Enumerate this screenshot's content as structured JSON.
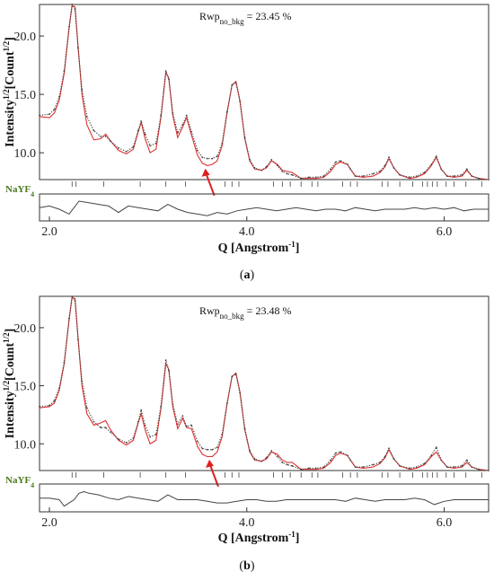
{
  "chart_data": [
    {
      "panel_label": "a",
      "type": "line",
      "xlabel": "Q [Angstrom-1]",
      "ylabel": "Intensity1/2[Count1/2]",
      "rwp": {
        "prefix": "Rwp",
        "subscript": "no_bkg",
        "value": "23.45 %"
      },
      "xlim": [
        1.9,
        6.45
      ],
      "ylim": [
        7.7,
        22.7
      ],
      "x_ticks": [
        2.0,
        4.0,
        6.0
      ],
      "y_ticks": [
        10.0,
        15.0,
        20.0
      ],
      "phase": {
        "label": "NaYF",
        "subscript": "4"
      },
      "arrow_at": 3.58,
      "reflections": [
        2.23,
        2.27,
        2.55,
        2.92,
        3.18,
        3.38,
        3.78,
        3.85,
        3.92,
        4.27,
        4.36,
        4.44,
        4.55,
        4.66,
        4.72,
        4.97,
        5.05,
        5.12,
        5.37,
        5.43,
        5.55,
        5.68,
        5.78,
        5.83,
        5.88,
        5.93,
        6.02,
        6.1,
        6.22,
        6.38
      ],
      "series": [
        {
          "name": "observed",
          "color": "#444444",
          "x": [
            1.9,
            2.0,
            2.05,
            2.1,
            2.15,
            2.2,
            2.23,
            2.26,
            2.29,
            2.33,
            2.38,
            2.45,
            2.52,
            2.57,
            2.62,
            2.7,
            2.78,
            2.85,
            2.9,
            2.93,
            2.97,
            3.02,
            3.08,
            3.13,
            3.18,
            3.21,
            3.25,
            3.3,
            3.35,
            3.39,
            3.44,
            3.5,
            3.55,
            3.6,
            3.65,
            3.7,
            3.75,
            3.8,
            3.85,
            3.89,
            3.93,
            3.98,
            4.03,
            4.08,
            4.15,
            4.2,
            4.25,
            4.31,
            4.36,
            4.41,
            4.46,
            4.55,
            4.63,
            4.7,
            4.78,
            4.85,
            4.9,
            4.95,
            5.02,
            5.05,
            5.1,
            5.18,
            5.28,
            5.35,
            5.4,
            5.44,
            5.49,
            5.55,
            5.65,
            5.72,
            5.8,
            5.87,
            5.92,
            5.97,
            6.03,
            6.1,
            6.18,
            6.23,
            6.28,
            6.35,
            6.45
          ],
          "y": [
            13.2,
            13.3,
            13.7,
            14.8,
            17.0,
            20.8,
            22.7,
            22.3,
            19.0,
            15.4,
            13.1,
            11.9,
            11.4,
            11.4,
            11.0,
            10.4,
            10.1,
            10.5,
            11.9,
            12.7,
            11.6,
            10.6,
            10.8,
            13.2,
            17.0,
            16.3,
            13.4,
            11.7,
            12.4,
            13.2,
            11.8,
            10.2,
            9.6,
            9.5,
            9.5,
            9.7,
            10.8,
            13.5,
            15.8,
            16.0,
            14.4,
            11.3,
            9.4,
            8.7,
            8.5,
            8.8,
            9.4,
            8.9,
            8.4,
            8.2,
            8.1,
            7.8,
            7.9,
            7.9,
            8.0,
            8.6,
            9.2,
            9.3,
            9.0,
            8.6,
            8.0,
            8.0,
            8.2,
            8.4,
            8.9,
            9.6,
            8.7,
            8.1,
            7.9,
            8.0,
            8.3,
            9.0,
            9.7,
            8.6,
            8.0,
            8.0,
            8.1,
            8.6,
            8.0,
            7.8,
            7.7
          ]
        },
        {
          "name": "calculated",
          "color": "#e03030",
          "x": [
            1.9,
            2.0,
            2.05,
            2.1,
            2.15,
            2.2,
            2.23,
            2.26,
            2.29,
            2.33,
            2.38,
            2.45,
            2.52,
            2.57,
            2.62,
            2.7,
            2.78,
            2.85,
            2.9,
            2.93,
            2.97,
            3.02,
            3.08,
            3.13,
            3.18,
            3.21,
            3.25,
            3.3,
            3.35,
            3.39,
            3.44,
            3.5,
            3.55,
            3.6,
            3.65,
            3.7,
            3.75,
            3.8,
            3.85,
            3.89,
            3.93,
            3.98,
            4.03,
            4.08,
            4.15,
            4.2,
            4.25,
            4.31,
            4.36,
            4.41,
            4.46,
            4.55,
            4.63,
            4.7,
            4.78,
            4.85,
            4.9,
            4.95,
            5.02,
            5.05,
            5.1,
            5.18,
            5.28,
            5.35,
            5.4,
            5.44,
            5.49,
            5.55,
            5.65,
            5.72,
            5.8,
            5.87,
            5.92,
            5.97,
            6.03,
            6.1,
            6.18,
            6.23,
            6.28,
            6.35,
            6.45
          ],
          "y": [
            13.1,
            13.0,
            13.4,
            14.5,
            16.8,
            20.7,
            22.6,
            22.5,
            19.2,
            15.0,
            12.4,
            11.1,
            11.2,
            11.6,
            11.0,
            10.2,
            9.9,
            10.3,
            11.8,
            12.6,
            11.2,
            10.0,
            10.3,
            13.0,
            16.9,
            16.4,
            13.2,
            11.3,
            12.2,
            13.0,
            11.5,
            9.8,
            9.1,
            8.9,
            9.0,
            9.3,
            10.6,
            13.4,
            15.8,
            16.1,
            14.5,
            11.2,
            9.3,
            8.6,
            8.5,
            8.7,
            9.3,
            9.0,
            8.5,
            8.4,
            8.3,
            7.8,
            7.8,
            7.8,
            7.9,
            8.4,
            9.0,
            9.2,
            9.0,
            8.6,
            8.0,
            7.9,
            8.0,
            8.3,
            8.8,
            9.5,
            8.7,
            8.1,
            7.8,
            7.9,
            8.2,
            8.9,
            9.6,
            8.6,
            8.0,
            7.9,
            8.0,
            8.5,
            8.0,
            7.8,
            7.7
          ]
        }
      ],
      "difference": {
        "x": [
          1.9,
          2.0,
          2.1,
          2.2,
          2.25,
          2.3,
          2.4,
          2.5,
          2.6,
          2.7,
          2.8,
          2.9,
          3.0,
          3.1,
          3.2,
          3.3,
          3.4,
          3.5,
          3.6,
          3.7,
          3.8,
          3.9,
          4.0,
          4.1,
          4.2,
          4.3,
          4.4,
          4.5,
          4.6,
          4.7,
          4.8,
          4.9,
          5.0,
          5.1,
          5.2,
          5.3,
          5.4,
          5.5,
          5.6,
          5.7,
          5.8,
          5.9,
          6.0,
          6.1,
          6.2,
          6.3,
          6.45
        ],
        "y": [
          0.1,
          0.2,
          0.0,
          -0.3,
          0.1,
          0.5,
          0.4,
          0.3,
          0.2,
          -0.2,
          0.2,
          0.1,
          0.0,
          -0.1,
          0.3,
          0.0,
          -0.2,
          -0.3,
          -0.4,
          -0.2,
          -0.3,
          -0.1,
          0.0,
          0.1,
          0.0,
          -0.1,
          0.0,
          0.1,
          0.0,
          -0.1,
          0.0,
          0.0,
          -0.1,
          0.1,
          0.0,
          -0.1,
          0.0,
          0.0,
          0.0,
          0.1,
          0.0,
          0.1,
          0.0,
          0.1,
          -0.1,
          0.0,
          0.0
        ]
      }
    },
    {
      "panel_label": "b",
      "type": "line",
      "xlabel": "Q [Angstrom-1]",
      "ylabel": "Intensity1/2[Count1/2]",
      "rwp": {
        "prefix": "Rwp",
        "subscript": "no_bkg",
        "value": "23.48 %"
      },
      "xlim": [
        1.9,
        6.45
      ],
      "ylim": [
        7.7,
        22.7
      ],
      "x_ticks": [
        2.0,
        4.0,
        6.0
      ],
      "y_ticks": [
        10.0,
        15.0,
        20.0
      ],
      "phase": {
        "label": "NaYF",
        "subscript": "4"
      },
      "arrow_at": 3.62,
      "reflections": [
        2.23,
        2.27,
        2.55,
        2.92,
        3.18,
        3.38,
        3.78,
        3.85,
        3.92,
        4.27,
        4.36,
        4.44,
        4.55,
        4.66,
        4.72,
        4.97,
        5.05,
        5.12,
        5.37,
        5.43,
        5.55,
        5.68,
        5.78,
        5.83,
        5.88,
        5.93,
        6.02,
        6.1,
        6.22,
        6.38
      ],
      "series": [
        {
          "name": "observed",
          "color": "#444444",
          "x": [
            1.9,
            2.0,
            2.05,
            2.1,
            2.15,
            2.2,
            2.23,
            2.26,
            2.29,
            2.33,
            2.38,
            2.45,
            2.52,
            2.57,
            2.62,
            2.7,
            2.78,
            2.85,
            2.9,
            2.93,
            2.97,
            3.02,
            3.08,
            3.13,
            3.18,
            3.21,
            3.25,
            3.3,
            3.35,
            3.39,
            3.44,
            3.5,
            3.55,
            3.6,
            3.65,
            3.7,
            3.75,
            3.8,
            3.85,
            3.89,
            3.93,
            3.98,
            4.03,
            4.08,
            4.15,
            4.2,
            4.25,
            4.31,
            4.36,
            4.41,
            4.46,
            4.55,
            4.63,
            4.7,
            4.78,
            4.85,
            4.9,
            4.95,
            5.02,
            5.05,
            5.1,
            5.18,
            5.28,
            5.35,
            5.4,
            5.44,
            5.49,
            5.55,
            5.65,
            5.72,
            5.8,
            5.87,
            5.92,
            5.97,
            6.03,
            6.1,
            6.18,
            6.23,
            6.28,
            6.35,
            6.45
          ],
          "y": [
            13.2,
            13.3,
            13.7,
            14.8,
            17.0,
            20.8,
            22.7,
            22.3,
            19.0,
            15.4,
            13.1,
            11.9,
            11.4,
            11.4,
            11.0,
            10.4,
            10.1,
            10.5,
            11.9,
            12.9,
            11.6,
            10.6,
            10.8,
            13.2,
            17.2,
            16.3,
            13.4,
            11.7,
            12.4,
            11.5,
            11.6,
            10.2,
            9.6,
            9.5,
            9.5,
            9.7,
            10.8,
            13.5,
            15.8,
            16.0,
            14.4,
            11.3,
            9.4,
            8.7,
            8.5,
            8.8,
            9.4,
            8.9,
            8.4,
            8.2,
            8.1,
            7.8,
            7.9,
            7.9,
            8.0,
            8.6,
            9.2,
            9.3,
            9.0,
            8.6,
            8.0,
            8.0,
            8.2,
            8.4,
            8.9,
            9.6,
            8.7,
            8.1,
            7.9,
            8.0,
            8.3,
            9.0,
            9.7,
            8.6,
            8.0,
            8.0,
            8.1,
            8.6,
            8.0,
            7.8,
            7.7
          ]
        },
        {
          "name": "calculated",
          "color": "#e03030",
          "x": [
            1.9,
            2.0,
            2.05,
            2.1,
            2.15,
            2.2,
            2.23,
            2.26,
            2.29,
            2.33,
            2.38,
            2.45,
            2.52,
            2.57,
            2.62,
            2.7,
            2.78,
            2.85,
            2.9,
            2.93,
            2.97,
            3.02,
            3.08,
            3.13,
            3.18,
            3.21,
            3.25,
            3.3,
            3.35,
            3.39,
            3.44,
            3.5,
            3.55,
            3.6,
            3.65,
            3.7,
            3.75,
            3.8,
            3.85,
            3.89,
            3.93,
            3.98,
            4.03,
            4.08,
            4.15,
            4.2,
            4.25,
            4.31,
            4.36,
            4.41,
            4.46,
            4.55,
            4.63,
            4.7,
            4.78,
            4.85,
            4.9,
            4.95,
            5.02,
            5.05,
            5.1,
            5.18,
            5.28,
            5.35,
            5.4,
            5.44,
            5.49,
            5.55,
            5.65,
            5.72,
            5.8,
            5.87,
            5.92,
            5.97,
            6.03,
            6.1,
            6.18,
            6.23,
            6.28,
            6.35,
            6.45
          ],
          "y": [
            13.1,
            13.2,
            13.5,
            14.6,
            16.9,
            20.7,
            22.6,
            22.5,
            19.2,
            15.0,
            12.6,
            11.6,
            11.8,
            12.0,
            11.2,
            10.3,
            9.9,
            10.3,
            11.8,
            12.6,
            11.2,
            10.0,
            10.3,
            13.0,
            16.9,
            16.4,
            13.2,
            11.3,
            12.2,
            11.4,
            11.3,
            9.8,
            9.1,
            8.9,
            8.9,
            9.3,
            10.6,
            13.4,
            15.8,
            16.1,
            14.5,
            11.2,
            9.3,
            8.6,
            8.5,
            8.7,
            9.3,
            9.1,
            8.6,
            8.4,
            8.4,
            7.8,
            7.8,
            7.8,
            7.9,
            8.4,
            9.0,
            9.2,
            9.0,
            8.6,
            8.0,
            7.9,
            8.0,
            8.3,
            8.8,
            9.5,
            8.7,
            8.1,
            7.8,
            7.9,
            8.2,
            8.9,
            9.3,
            8.6,
            8.0,
            7.9,
            8.0,
            8.4,
            8.0,
            7.8,
            7.7
          ]
        }
      ],
      "difference": {
        "x": [
          1.9,
          2.0,
          2.1,
          2.15,
          2.2,
          2.25,
          2.3,
          2.35,
          2.4,
          2.5,
          2.6,
          2.7,
          2.8,
          2.9,
          3.0,
          3.1,
          3.2,
          3.3,
          3.4,
          3.5,
          3.6,
          3.7,
          3.8,
          3.9,
          4.0,
          4.1,
          4.2,
          4.3,
          4.4,
          4.5,
          4.6,
          4.7,
          4.8,
          4.9,
          5.0,
          5.1,
          5.2,
          5.3,
          5.4,
          5.5,
          5.6,
          5.7,
          5.8,
          5.9,
          6.0,
          6.1,
          6.2,
          6.3,
          6.45
        ],
        "y": [
          0.1,
          0.1,
          0.0,
          -0.4,
          -0.2,
          0.0,
          0.4,
          0.5,
          0.4,
          0.3,
          0.1,
          0.0,
          0.2,
          0.1,
          0.0,
          -0.1,
          0.3,
          0.0,
          0.0,
          0.0,
          -0.1,
          -0.2,
          -0.2,
          -0.1,
          0.0,
          0.0,
          -0.1,
          -0.1,
          0.0,
          0.0,
          0.0,
          0.0,
          0.0,
          0.0,
          -0.1,
          0.1,
          0.0,
          -0.1,
          0.0,
          0.0,
          0.0,
          0.1,
          0.0,
          -0.3,
          -0.1,
          0.0,
          0.0,
          0.0,
          0.0
        ]
      }
    }
  ]
}
